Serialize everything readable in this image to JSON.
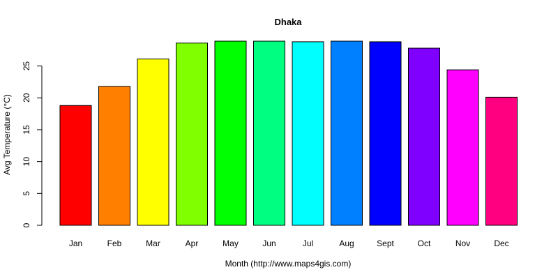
{
  "chart_data": {
    "type": "bar",
    "title": "Dhaka",
    "xlabel": "Month (http://www.maps4gis.com)",
    "ylabel": "Avg Temperature (°C)",
    "categories": [
      "Jan",
      "Feb",
      "Mar",
      "Apr",
      "May",
      "Jun",
      "Jul",
      "Aug",
      "Sept",
      "Oct",
      "Nov",
      "Dec"
    ],
    "values": [
      18.8,
      21.8,
      26.1,
      28.6,
      28.9,
      28.9,
      28.8,
      28.9,
      28.8,
      27.8,
      24.4,
      20.1
    ],
    "colors": [
      "#ff0000",
      "#ff8000",
      "#ffff00",
      "#80ff00",
      "#00ff00",
      "#00ff80",
      "#00ffff",
      "#0080ff",
      "#0000ff",
      "#8000ff",
      "#ff00ff",
      "#ff0080"
    ],
    "yticks": [
      0,
      5,
      10,
      15,
      20,
      25
    ],
    "ylim": [
      0,
      28.9
    ],
    "grid": false,
    "legend": "none"
  }
}
